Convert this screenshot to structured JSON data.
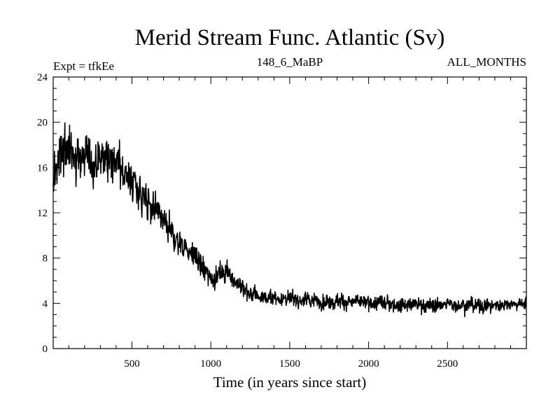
{
  "chart_data": {
    "type": "line",
    "title": "Merid Stream Func. Atlantic (Sv)",
    "subtitle_left": "Expt = tfkEe",
    "subtitle_center": "148_6_MaBP",
    "subtitle_right": "ALL_MONTHS",
    "xlabel": "Time (in years since start)",
    "ylabel": "",
    "xlim": [
      1,
      3000
    ],
    "ylim": [
      0,
      24
    ],
    "x_ticks": [
      500,
      1000,
      1500,
      2000,
      2500
    ],
    "y_ticks": [
      0,
      4,
      8,
      12,
      16,
      20,
      24
    ],
    "grid": false,
    "series": [
      {
        "color": "#000000",
        "trend": {
          "x": [
            1,
            50,
            100,
            150,
            200,
            250,
            300,
            350,
            400,
            450,
            500,
            550,
            600,
            650,
            700,
            750,
            800,
            850,
            900,
            950,
            1000,
            1050,
            1100,
            1150,
            1200,
            1250,
            1300,
            1350,
            1400,
            1500,
            1600,
            1700,
            1800,
            1900,
            2000,
            2100,
            2200,
            2300,
            2400,
            2500,
            2600,
            2700,
            2800,
            2900,
            3000
          ],
          "y": [
            15.5,
            17.0,
            17.5,
            17.2,
            16.8,
            16.5,
            16.8,
            17.0,
            16.5,
            15.6,
            14.8,
            13.8,
            12.8,
            12.0,
            11.0,
            10.0,
            9.4,
            8.8,
            8.1,
            7.0,
            6.3,
            6.6,
            6.8,
            6.2,
            5.3,
            4.8,
            4.6,
            4.5,
            4.5,
            4.4,
            4.3,
            4.2,
            4.2,
            4.1,
            4.0,
            4.0,
            3.9,
            3.9,
            3.8,
            3.9,
            3.9,
            3.8,
            3.8,
            4.0,
            4.0
          ]
        },
        "noise_amplitude": {
          "x": [
            1,
            600,
            1000,
            1300,
            3000
          ],
          "y": [
            2.0,
            1.5,
            0.9,
            0.6,
            0.55
          ]
        }
      }
    ]
  }
}
